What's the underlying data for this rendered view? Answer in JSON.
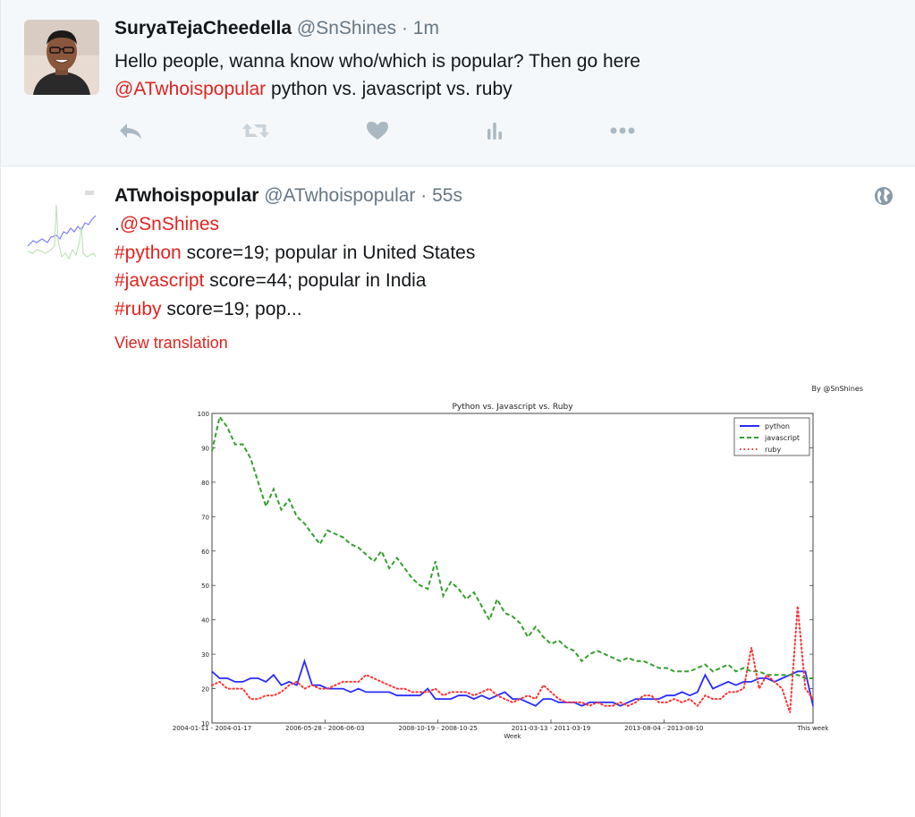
{
  "tweet1": {
    "author_name": "SuryaTejaCheedella",
    "handle": "@SnShines",
    "time": "· 1m",
    "line1": "Hello people, wanna know who/which is popular? Then go here",
    "mention": "@ATwhoispopular",
    "line2_rest": " python vs. javascript vs. ruby",
    "actions": [
      "reply-icon",
      "retweet-icon",
      "like-icon",
      "analytics-icon",
      "more-icon"
    ]
  },
  "tweet2": {
    "author_name": "ATwhoispopular",
    "handle": "@ATwhoispopular",
    "time": "· 55s",
    "line1_prefix": ".",
    "line1_mention": "@SnShines",
    "line2_tag": "#python",
    "line2_rest": " score=19; popular in United States",
    "line3_tag": "#javascript",
    "line3_rest": " score=44; popular in India",
    "line4_tag": "#ruby",
    "line4_rest": " score=19; pop...",
    "view_translation": "View translation"
  },
  "colors": {
    "accent_red": "#e0241f",
    "muted": "#657786",
    "python": "#2b2bff",
    "javascript": "#33a02c",
    "ruby": "#ff3333"
  },
  "chart_data": {
    "type": "line",
    "title": "Python vs. Javascript vs. Ruby",
    "credit": "By @SnShines",
    "xlabel": "Week",
    "ylabel": "",
    "ylim": [
      10,
      100
    ],
    "yticks": [
      10,
      20,
      30,
      40,
      50,
      60,
      70,
      80,
      90,
      100
    ],
    "xtick_labels": [
      "2004-01-11 - 2004-01-17",
      "2006-05-28 - 2006-06-03",
      "2008-10-19 - 2008-10-25",
      "2011-03-13 - 2011-03-19",
      "2013-08-04 - 2013-08-10",
      "This week"
    ],
    "xtick_positions": [
      0,
      0.188,
      0.376,
      0.564,
      0.752,
      1.0
    ],
    "legend_position": "top-right",
    "series": [
      {
        "name": "python",
        "style": "solid",
        "values": [
          25,
          23,
          23,
          22,
          22,
          23,
          23,
          22,
          24,
          21,
          22,
          21,
          28,
          21,
          21,
          20,
          20,
          20,
          19,
          20,
          19,
          19,
          19,
          19,
          18,
          18,
          18,
          18,
          20,
          17,
          17,
          17,
          18,
          18,
          17,
          18,
          17,
          18,
          19,
          17,
          17,
          16,
          15,
          17,
          17,
          16,
          16,
          16,
          15,
          16,
          16,
          16,
          16,
          15,
          16,
          17,
          17,
          17,
          17,
          18,
          18,
          19,
          18,
          19,
          24,
          20,
          21,
          22,
          21,
          22,
          22,
          23,
          23,
          22,
          23,
          24,
          25,
          25,
          15
        ]
      },
      {
        "name": "javascript",
        "style": "dashed",
        "values": [
          89,
          99,
          96,
          91,
          91,
          87,
          80,
          73,
          78,
          72,
          75,
          70,
          68,
          65,
          62,
          66,
          65,
          64,
          62,
          61,
          59,
          57,
          60,
          55,
          58,
          55,
          52,
          50,
          49,
          57,
          47,
          51,
          49,
          46,
          48,
          44,
          40,
          46,
          42,
          41,
          39,
          35,
          38,
          35,
          33,
          34,
          32,
          31,
          28,
          30,
          31,
          30,
          29,
          28,
          29,
          28,
          28,
          27,
          26,
          26,
          25,
          25,
          25,
          26,
          27,
          25,
          26,
          27,
          25,
          26,
          25,
          25,
          24,
          24,
          24,
          24,
          24,
          23,
          23
        ]
      },
      {
        "name": "ruby",
        "style": "dotted",
        "values": [
          21,
          22,
          20,
          20,
          20,
          17,
          17,
          18,
          18,
          19,
          21,
          22,
          20,
          21,
          20,
          20,
          21,
          22,
          22,
          22,
          24,
          23,
          22,
          21,
          20,
          20,
          19,
          19,
          19,
          20,
          18,
          19,
          19,
          19,
          18,
          19,
          20,
          18,
          17,
          16,
          17,
          18,
          17,
          21,
          19,
          17,
          16,
          16,
          16,
          15,
          16,
          15,
          15,
          16,
          15,
          16,
          18,
          18,
          16,
          16,
          17,
          16,
          17,
          15,
          18,
          17,
          17,
          19,
          19,
          20,
          32,
          20,
          24,
          22,
          20,
          13,
          44,
          20,
          17
        ]
      }
    ]
  }
}
